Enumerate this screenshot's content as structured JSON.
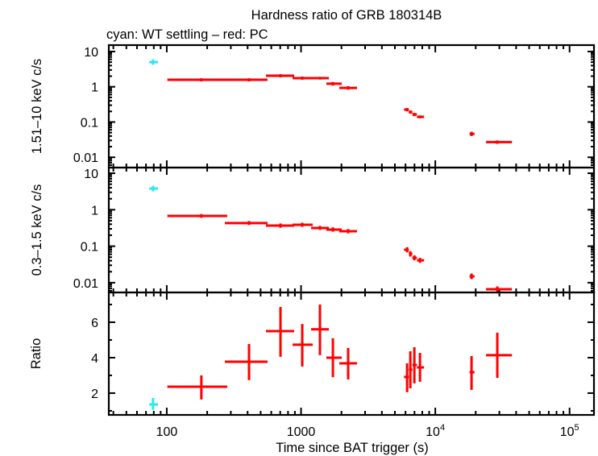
{
  "chart_data": {
    "type": "scatter",
    "title": "Hardness ratio of GRB 180314B",
    "subtitle": "cyan: WT settling – red: PC",
    "legend": "subtitle text, top-left",
    "xlabel": "Time since BAT trigger (s)",
    "xscale": "log",
    "xlim": [
      37,
      152000
    ],
    "xticks": [
      {
        "value": 100,
        "label": "100"
      },
      {
        "value": 1000,
        "label": "1000"
      },
      {
        "value": 10000,
        "base": "10",
        "exp": "4"
      },
      {
        "value": 100000,
        "base": "10",
        "exp": "5"
      }
    ],
    "grid": false,
    "panels": [
      {
        "id": "hard",
        "ylabel": "1.51–10 keV c/s",
        "yscale": "log",
        "ylim": [
          0.0051,
          15.2
        ],
        "yticks": [
          {
            "value": 10,
            "label": "10"
          },
          {
            "value": 1,
            "label": "1"
          },
          {
            "value": 0.1,
            "label": "0.1"
          },
          {
            "value": 0.01,
            "label": "0.01"
          }
        ]
      },
      {
        "id": "soft",
        "ylabel": "0.3–1.5 keV c/s",
        "yscale": "log",
        "ylim": [
          0.0054,
          14.3
        ],
        "yticks": [
          {
            "value": 10,
            "label": "10"
          },
          {
            "value": 1,
            "label": "1"
          },
          {
            "value": 0.1,
            "label": "0.1"
          },
          {
            "value": 0.01,
            "label": "0.01"
          }
        ]
      },
      {
        "id": "ratio",
        "ylabel": "Ratio",
        "yscale": "linear",
        "ylim": [
          0.77,
          7.68
        ],
        "yticks": [
          {
            "value": 6,
            "label": "6"
          },
          {
            "value": 4,
            "label": "4"
          },
          {
            "value": 2,
            "label": "2"
          }
        ],
        "yminor": [
          1,
          3,
          5,
          7
        ]
      }
    ],
    "series": [
      {
        "name": "WT settling",
        "color": "#2de8f0",
        "points": [
          {
            "t": 79,
            "t_lo": 74,
            "t_hi": 86,
            "hard": 5.0,
            "hard_lo": 4.2,
            "hard_hi": 6.0,
            "soft": 3.8,
            "soft_lo": 3.2,
            "soft_hi": 4.5,
            "ratio": 1.36,
            "ratio_lo": 1.05,
            "ratio_hi": 1.73
          }
        ]
      },
      {
        "name": "PC",
        "color": "#ff0000",
        "points": [
          {
            "t": 181,
            "t_lo": 101,
            "t_hi": 282,
            "hard": 1.58,
            "hard_lo": 1.42,
            "hard_hi": 1.75,
            "soft": 0.676,
            "soft_lo": 0.6,
            "soft_hi": 0.76,
            "ratio": 2.36,
            "ratio_lo": 1.64,
            "ratio_hi": 3.0
          },
          {
            "t": 410,
            "t_lo": 271,
            "t_hi": 563,
            "hard": 1.58,
            "hard_lo": 1.42,
            "hard_hi": 1.75,
            "soft": 0.43,
            "soft_lo": 0.38,
            "soft_hi": 0.49,
            "ratio": 3.77,
            "ratio_lo": 2.73,
            "ratio_hi": 4.77
          },
          {
            "t": 703,
            "t_lo": 548,
            "t_hi": 889,
            "hard": 2.06,
            "hard_lo": 1.85,
            "hard_hi": 2.28,
            "soft": 0.367,
            "soft_lo": 0.32,
            "soft_hi": 0.42,
            "ratio": 5.5,
            "ratio_lo": 4.05,
            "ratio_hi": 6.86
          },
          {
            "t": 1021,
            "t_lo": 865,
            "t_hi": 1222,
            "hard": 1.76,
            "hard_lo": 1.58,
            "hard_hi": 1.95,
            "soft": 0.386,
            "soft_lo": 0.34,
            "soft_hi": 0.44,
            "ratio": 4.73,
            "ratio_lo": 3.5,
            "ratio_hi": 5.9
          },
          {
            "t": 1383,
            "t_lo": 1189,
            "t_hi": 1611,
            "hard": 1.76,
            "hard_lo": 1.6,
            "hard_hi": 1.92,
            "soft": 0.316,
            "soft_lo": 0.28,
            "soft_hi": 0.36,
            "ratio": 5.6,
            "ratio_lo": 4.14,
            "ratio_hi": 7.0
          },
          {
            "t": 1727,
            "t_lo": 1545,
            "t_hi": 2010,
            "hard": 1.22,
            "hard_lo": 1.08,
            "hard_hi": 1.37,
            "soft": 0.285,
            "soft_lo": 0.25,
            "soft_hi": 0.33,
            "ratio": 4.0,
            "ratio_lo": 2.9,
            "ratio_hi": 5.1
          },
          {
            "t": 2244,
            "t_lo": 1928,
            "t_hi": 2611,
            "hard": 0.93,
            "hard_lo": 0.83,
            "hard_hi": 1.04,
            "soft": 0.258,
            "soft_lo": 0.225,
            "soft_hi": 0.295,
            "ratio": 3.68,
            "ratio_lo": 2.77,
            "ratio_hi": 4.55
          },
          {
            "t": 6166,
            "t_lo": 5850,
            "t_hi": 6350,
            "hard": 0.225,
            "hard_lo": 0.2,
            "hard_hi": 0.25,
            "soft": 0.08,
            "soft_lo": 0.068,
            "soft_hi": 0.094,
            "ratio": 2.91,
            "ratio_lo": 2.05,
            "ratio_hi": 3.68
          },
          {
            "t": 6516,
            "t_lo": 6350,
            "t_hi": 6750,
            "hard": 0.192,
            "hard_lo": 0.172,
            "hard_hi": 0.213,
            "soft": 0.062,
            "soft_lo": 0.052,
            "soft_hi": 0.073,
            "ratio": 3.32,
            "ratio_lo": 2.27,
            "ratio_hi": 4.36
          },
          {
            "t": 6982,
            "t_lo": 6750,
            "t_hi": 7300,
            "hard": 0.164,
            "hard_lo": 0.147,
            "hard_hi": 0.182,
            "soft": 0.048,
            "soft_lo": 0.041,
            "soft_hi": 0.056,
            "ratio": 3.59,
            "ratio_lo": 2.55,
            "ratio_hi": 4.59
          },
          {
            "t": 7690,
            "t_lo": 7300,
            "t_hi": 8250,
            "hard": 0.14,
            "hard_lo": 0.127,
            "hard_hi": 0.154,
            "soft": 0.041,
            "soft_lo": 0.035,
            "soft_hi": 0.048,
            "ratio": 3.45,
            "ratio_lo": 2.64,
            "ratio_hi": 4.27
          },
          {
            "t": 18620,
            "t_lo": 18000,
            "t_hi": 19600,
            "hard": 0.046,
            "hard_lo": 0.04,
            "hard_hi": 0.053,
            "soft": 0.0149,
            "soft_lo": 0.0125,
            "soft_hi": 0.0178,
            "ratio": 3.18,
            "ratio_lo": 2.18,
            "ratio_hi": 4.09
          },
          {
            "t": 28970,
            "t_lo": 23880,
            "t_hi": 37250,
            "hard": 0.027,
            "hard_lo": 0.024,
            "hard_hi": 0.03,
            "soft": 0.0066,
            "soft_lo": 0.0055,
            "soft_hi": 0.0079,
            "ratio": 4.14,
            "ratio_lo": 2.86,
            "ratio_hi": 5.41
          }
        ]
      }
    ]
  }
}
